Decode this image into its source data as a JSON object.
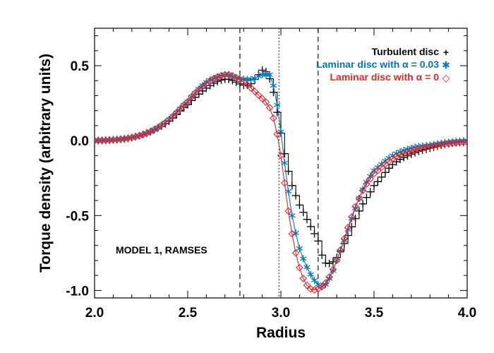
{
  "chart_data": {
    "type": "line",
    "title": "",
    "xlabel": "Radius",
    "ylabel": "Torque density (arbitrary units)",
    "xlim": [
      2.0,
      4.0
    ],
    "ylim": [
      -1.05,
      0.75
    ],
    "xticks": [
      2.0,
      2.5,
      3.0,
      3.5,
      4.0
    ],
    "xtick_labels": [
      "2.0",
      "2.5",
      "3.0",
      "3.5",
      "4.0"
    ],
    "yticks": [
      -1.0,
      -0.5,
      0.0,
      0.5
    ],
    "ytick_labels": [
      "-1.0",
      "-0.5",
      "0.0",
      "0.5"
    ],
    "grid": false,
    "legend_position": "top-right",
    "annotation": "MODEL 1, RAMSES",
    "vertical_lines": [
      {
        "x": 2.78,
        "style": "dashed"
      },
      {
        "x": 2.99,
        "style": "dotted"
      },
      {
        "x": 3.2,
        "style": "dashed"
      }
    ],
    "series": [
      {
        "name": "Turbulent disc",
        "marker_symbol": "+",
        "color": "#000000",
        "marker": "plus",
        "x": [
          2.0,
          2.1,
          2.2,
          2.3,
          2.4,
          2.5,
          2.55,
          2.6,
          2.65,
          2.7,
          2.72,
          2.76,
          2.8,
          2.84,
          2.88,
          2.9,
          2.92,
          2.95,
          2.97,
          3.0,
          3.03,
          3.06,
          3.1,
          3.15,
          3.2,
          3.23,
          3.26,
          3.3,
          3.35,
          3.4,
          3.45,
          3.5,
          3.6,
          3.7,
          3.8,
          3.9,
          4.0
        ],
        "y": [
          0.0,
          0.005,
          0.02,
          0.06,
          0.13,
          0.24,
          0.3,
          0.35,
          0.39,
          0.41,
          0.41,
          0.39,
          0.37,
          0.38,
          0.44,
          0.47,
          0.46,
          0.38,
          0.25,
          0.05,
          -0.15,
          -0.3,
          -0.43,
          -0.55,
          -0.67,
          -0.8,
          -0.82,
          -0.78,
          -0.66,
          -0.52,
          -0.4,
          -0.3,
          -0.16,
          -0.09,
          -0.05,
          -0.02,
          -0.01
        ]
      },
      {
        "name": "Laminar disc with α = 0.03",
        "marker_symbol": "✱",
        "color": "#0077bb",
        "marker": "asterisk",
        "x": [
          2.0,
          2.1,
          2.2,
          2.3,
          2.4,
          2.5,
          2.55,
          2.6,
          2.65,
          2.7,
          2.72,
          2.76,
          2.8,
          2.85,
          2.88,
          2.9,
          2.92,
          2.94,
          2.97,
          3.0,
          3.03,
          3.06,
          3.1,
          3.15,
          3.2,
          3.23,
          3.26,
          3.3,
          3.35,
          3.4,
          3.45,
          3.5,
          3.6,
          3.7,
          3.8,
          3.9,
          4.0
        ],
        "y": [
          0.0,
          0.005,
          0.02,
          0.06,
          0.14,
          0.26,
          0.33,
          0.39,
          0.42,
          0.44,
          0.44,
          0.42,
          0.41,
          0.41,
          0.43,
          0.44,
          0.44,
          0.44,
          0.31,
          0.06,
          -0.25,
          -0.5,
          -0.72,
          -0.87,
          -0.96,
          -0.97,
          -0.92,
          -0.8,
          -0.63,
          -0.45,
          -0.3,
          -0.2,
          -0.1,
          -0.05,
          -0.03,
          -0.01,
          0.0
        ]
      },
      {
        "name": "Laminar disc with α = 0",
        "marker_symbol": "◇",
        "color": "#e8232a",
        "marker": "diamond",
        "x": [
          2.0,
          2.1,
          2.2,
          2.3,
          2.4,
          2.5,
          2.55,
          2.6,
          2.65,
          2.7,
          2.72,
          2.76,
          2.8,
          2.85,
          2.9,
          2.93,
          2.96,
          3.0,
          3.04,
          3.08,
          3.12,
          3.16,
          3.2,
          3.24,
          3.28,
          3.32,
          3.36,
          3.4,
          3.45,
          3.5,
          3.6,
          3.7,
          3.8,
          3.9,
          4.0
        ],
        "y": [
          0.0,
          0.005,
          0.02,
          0.06,
          0.14,
          0.26,
          0.33,
          0.38,
          0.42,
          0.44,
          0.44,
          0.42,
          0.39,
          0.34,
          0.28,
          0.24,
          0.15,
          -0.1,
          -0.47,
          -0.75,
          -0.92,
          -0.99,
          -0.99,
          -0.95,
          -0.86,
          -0.73,
          -0.58,
          -0.44,
          -0.31,
          -0.22,
          -0.12,
          -0.07,
          -0.04,
          -0.02,
          -0.01
        ]
      }
    ]
  }
}
